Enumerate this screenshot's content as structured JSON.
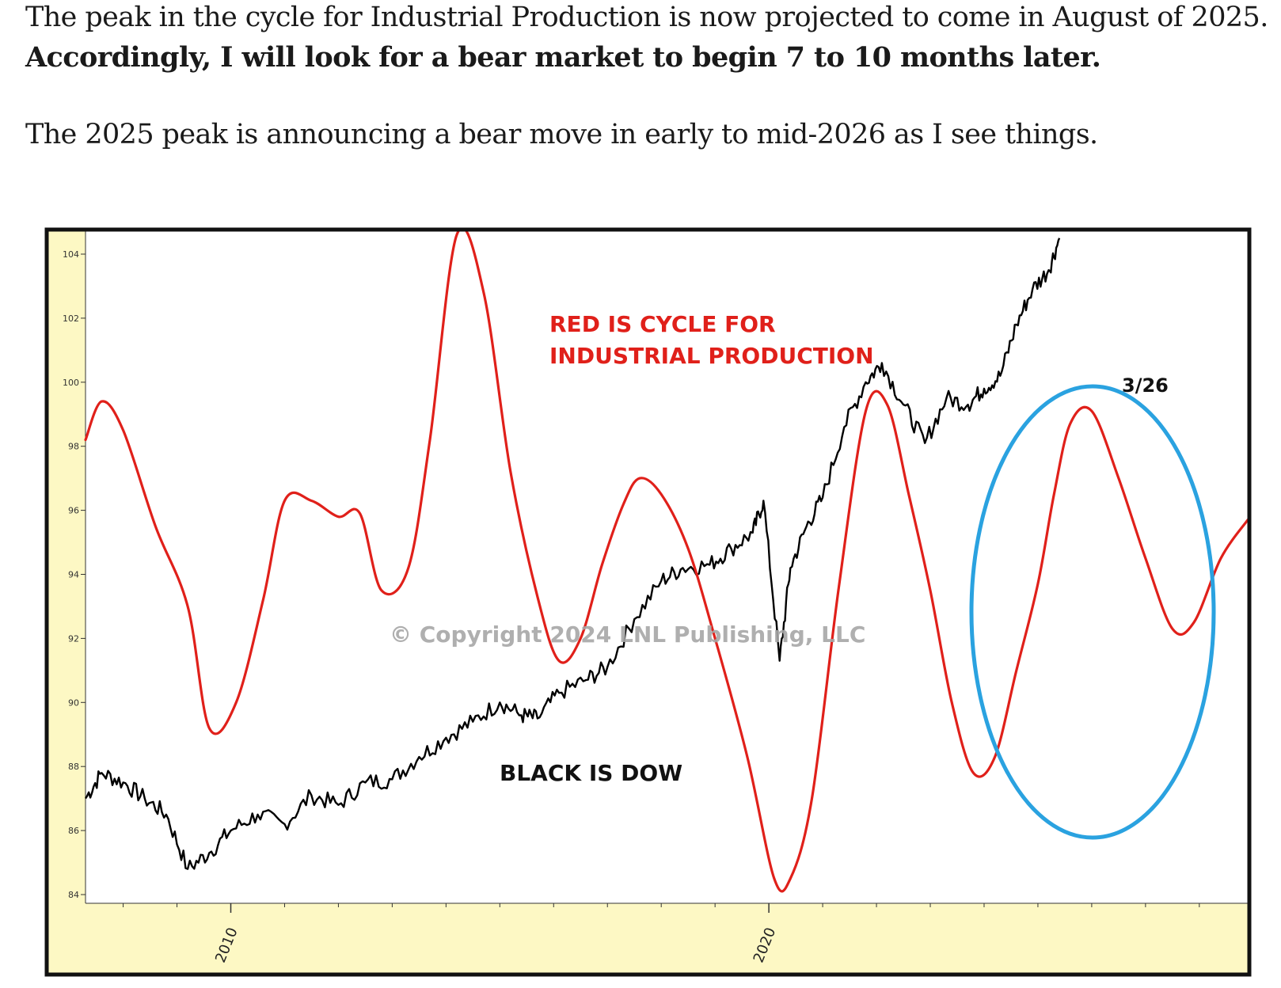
{
  "article": {
    "line1": "The peak in the cycle for Industrial Production is now projected to come in August of 2025.",
    "line2": "Accordingly, I will look for a bear market to begin 7 to 10 months later.",
    "line3": "The 2025 peak is announcing a bear move in early to mid-2026 as I see things."
  },
  "colors": {
    "cycle": "#e0201a",
    "dow": "#000000",
    "ellipse": "#2aa2e0",
    "axis_panel": "#fdf8c4",
    "frame": "#111111"
  },
  "chart_data": {
    "type": "line",
    "title": "",
    "xlabel": "",
    "ylabel": "",
    "ylim": [
      84,
      104
    ],
    "xlim": [
      2007.3,
      2028.9
    ],
    "x_ticks": [
      2010,
      2020
    ],
    "x_tick_labels": [
      "2010",
      "2020"
    ],
    "y_ticks": [
      84,
      86,
      88,
      90,
      92,
      94,
      96,
      98,
      100,
      102,
      104
    ],
    "y_tick_labels": [
      "84",
      "86",
      "88",
      "90",
      "92",
      "94",
      "96",
      "98",
      "100",
      "102",
      "104"
    ],
    "grid": false,
    "annotations": {
      "cycle_label_1": "RED IS CYCLE FOR",
      "cycle_label_2": "INDUSTRIAL PRODUCTION",
      "dow_label": "BLACK IS DOW",
      "copyright": "© Copyright 2024 LNL Publishing, LLC",
      "peak_marker": "3/26"
    },
    "series": [
      {
        "id": "cycle",
        "x": [
          2007.3,
          2007.6,
          2008.0,
          2008.6,
          2009.2,
          2009.6,
          2010.1,
          2010.6,
          2011.0,
          2011.5,
          2012.0,
          2012.4,
          2012.8,
          2013.3,
          2013.7,
          2014.2,
          2014.7,
          2015.2,
          2015.7,
          2016.1,
          2016.5,
          2016.9,
          2017.3,
          2017.6,
          2018.0,
          2018.5,
          2019.0,
          2019.6,
          2020.1,
          2020.4,
          2020.8,
          2021.3,
          2021.8,
          2022.2,
          2022.6,
          2023.0,
          2023.4,
          2023.8,
          2024.2,
          2024.6,
          2025.0,
          2025.3,
          2025.6,
          2026.0,
          2026.5,
          2027.0,
          2027.5,
          2027.9,
          2028.4,
          2028.9
        ],
        "y": [
          98.2,
          99.4,
          98.5,
          95.5,
          93.0,
          89.2,
          90.0,
          93.2,
          96.3,
          96.3,
          95.8,
          95.9,
          93.5,
          94.2,
          98.2,
          104.6,
          102.8,
          97.2,
          93.3,
          91.3,
          92.0,
          94.3,
          96.2,
          97.0,
          96.5,
          94.8,
          92.0,
          88.3,
          84.5,
          84.5,
          87.0,
          93.6,
          99.1,
          99.3,
          96.5,
          93.5,
          90.0,
          87.8,
          88.3,
          91.0,
          93.7,
          96.5,
          98.7,
          99.1,
          97.0,
          94.5,
          92.3,
          92.5,
          94.5,
          95.7
        ]
      },
      {
        "id": "dow",
        "x": [
          2007.3,
          2007.6,
          2008.0,
          2008.4,
          2008.8,
          2009.2,
          2009.6,
          2010.0,
          2010.5,
          2011.0,
          2011.5,
          2012.0,
          2012.5,
          2013.0,
          2013.5,
          2014.0,
          2014.5,
          2015.0,
          2015.4,
          2015.7,
          2016.1,
          2016.6,
          2017.0,
          2017.5,
          2018.0,
          2018.4,
          2018.9,
          2019.3,
          2019.7,
          2019.9,
          2020.2,
          2020.4,
          2020.7,
          2021.0,
          2021.4,
          2021.8,
          2022.1,
          2022.5,
          2022.9,
          2023.3,
          2023.7,
          2024.0,
          2024.3,
          2024.6,
          2024.9,
          2025.2,
          2025.4
        ],
        "y": [
          87.0,
          87.8,
          87.5,
          87.0,
          86.5,
          84.8,
          85.3,
          86.0,
          86.5,
          86.2,
          87.1,
          86.8,
          87.5,
          87.6,
          88.3,
          88.9,
          89.4,
          90.0,
          89.6,
          89.5,
          90.3,
          90.7,
          91.1,
          92.6,
          93.8,
          94.2,
          94.3,
          94.8,
          95.3,
          96.3,
          91.3,
          94.2,
          95.5,
          96.4,
          98.6,
          100.0,
          100.6,
          99.3,
          98.1,
          99.5,
          99.3,
          99.8,
          100.2,
          101.8,
          102.9,
          103.5,
          104.5
        ]
      }
    ]
  }
}
